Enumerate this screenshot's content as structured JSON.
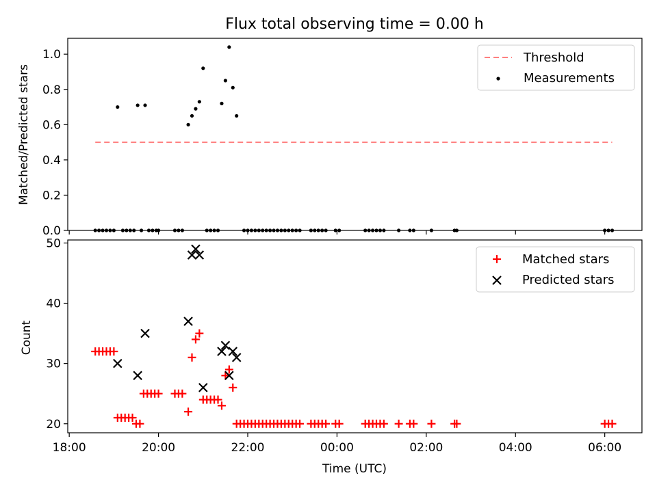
{
  "title": "Flux total observing time = 0.00 h",
  "chart_data": [
    {
      "type": "scatter",
      "ylabel": "Matched/Predicted stars",
      "ylim": [
        0,
        1.09
      ],
      "yticks": [
        "0.0",
        "0.2",
        "0.4",
        "0.6",
        "0.8",
        "1.0"
      ],
      "ytick_values": [
        0,
        0.2,
        0.4,
        0.6,
        0.8,
        1.0
      ],
      "legend_position": "top-right",
      "threshold": {
        "name": "Threshold",
        "value": 0.5,
        "x_range": [
          "18:35",
          "06:10"
        ],
        "color": "#ff7f7f"
      },
      "series": [
        {
          "name": "Measurements",
          "color": "#000000",
          "points": [
            [
              "18:35",
              0
            ],
            [
              "18:40",
              0
            ],
            [
              "18:45",
              0
            ],
            [
              "18:50",
              0
            ],
            [
              "18:55",
              0
            ],
            [
              "19:00",
              0
            ],
            [
              "19:05",
              0.7
            ],
            [
              "19:12",
              0
            ],
            [
              "19:17",
              0
            ],
            [
              "19:22",
              0
            ],
            [
              "19:27",
              0
            ],
            [
              "19:32",
              0.71
            ],
            [
              "19:37",
              0
            ],
            [
              "19:42",
              0.71
            ],
            [
              "19:47",
              0
            ],
            [
              "19:52",
              0
            ],
            [
              "19:57",
              0
            ],
            [
              "20:00",
              0
            ],
            [
              "20:22",
              0
            ],
            [
              "20:27",
              0
            ],
            [
              "20:32",
              0
            ],
            [
              "20:40",
              0.6
            ],
            [
              "20:45",
              0.65
            ],
            [
              "20:50",
              0.69
            ],
            [
              "20:55",
              0.73
            ],
            [
              "21:00",
              0.92
            ],
            [
              "21:05",
              0
            ],
            [
              "21:10",
              0
            ],
            [
              "21:15",
              0
            ],
            [
              "21:20",
              0
            ],
            [
              "21:25",
              0.72
            ],
            [
              "21:30",
              0.85
            ],
            [
              "21:35",
              1.04
            ],
            [
              "21:40",
              0.81
            ],
            [
              "21:45",
              0.65
            ],
            [
              "21:55",
              0
            ],
            [
              "22:00",
              0
            ],
            [
              "22:05",
              0
            ],
            [
              "22:10",
              0
            ],
            [
              "22:15",
              0
            ],
            [
              "22:20",
              0
            ],
            [
              "22:25",
              0
            ],
            [
              "22:30",
              0
            ],
            [
              "22:35",
              0
            ],
            [
              "22:40",
              0
            ],
            [
              "22:45",
              0
            ],
            [
              "22:50",
              0
            ],
            [
              "22:55",
              0
            ],
            [
              "23:00",
              0
            ],
            [
              "23:05",
              0
            ],
            [
              "23:10",
              0
            ],
            [
              "23:25",
              0
            ],
            [
              "23:30",
              0
            ],
            [
              "23:35",
              0
            ],
            [
              "23:40",
              0
            ],
            [
              "23:45",
              0
            ],
            [
              "23:58",
              0
            ],
            [
              "00:03",
              0
            ],
            [
              "00:38",
              0
            ],
            [
              "00:43",
              0
            ],
            [
              "00:48",
              0
            ],
            [
              "00:53",
              0
            ],
            [
              "00:58",
              0
            ],
            [
              "01:03",
              0
            ],
            [
              "01:23",
              0
            ],
            [
              "01:38",
              0
            ],
            [
              "01:43",
              0
            ],
            [
              "02:07",
              0
            ],
            [
              "02:38",
              0
            ],
            [
              "02:41",
              0
            ],
            [
              "06:00",
              0
            ],
            [
              "06:05",
              0
            ],
            [
              "06:10",
              0
            ]
          ]
        }
      ]
    },
    {
      "type": "scatter",
      "xlabel": "Time (UTC)",
      "ylabel": "Count",
      "ylim": [
        18.5,
        50.5
      ],
      "yticks": [
        "20",
        "30",
        "40",
        "50"
      ],
      "ytick_values": [
        20,
        30,
        40,
        50
      ],
      "xlim": [
        "17:58",
        "06:50"
      ],
      "xticks": [
        "18:00",
        "20:00",
        "22:00",
        "00:00",
        "02:00",
        "04:00",
        "06:00"
      ],
      "legend_position": "top-right",
      "series": [
        {
          "name": "Matched stars",
          "marker": "+",
          "color": "#ff0000",
          "points": [
            [
              "18:35",
              32
            ],
            [
              "18:40",
              32
            ],
            [
              "18:45",
              32
            ],
            [
              "18:50",
              32
            ],
            [
              "18:55",
              32
            ],
            [
              "19:00",
              32
            ],
            [
              "19:05",
              21
            ],
            [
              "19:10",
              21
            ],
            [
              "19:15",
              21
            ],
            [
              "19:20",
              21
            ],
            [
              "19:25",
              21
            ],
            [
              "19:30",
              20
            ],
            [
              "19:35",
              20
            ],
            [
              "19:40",
              25
            ],
            [
              "19:45",
              25
            ],
            [
              "19:50",
              25
            ],
            [
              "19:55",
              25
            ],
            [
              "20:00",
              25
            ],
            [
              "20:22",
              25
            ],
            [
              "20:27",
              25
            ],
            [
              "20:32",
              25
            ],
            [
              "20:40",
              22
            ],
            [
              "20:45",
              31
            ],
            [
              "20:50",
              34
            ],
            [
              "20:55",
              35
            ],
            [
              "21:00",
              24
            ],
            [
              "21:05",
              24
            ],
            [
              "21:10",
              24
            ],
            [
              "21:15",
              24
            ],
            [
              "21:20",
              24
            ],
            [
              "21:25",
              23
            ],
            [
              "21:30",
              28
            ],
            [
              "21:35",
              29
            ],
            [
              "21:40",
              26
            ],
            [
              "21:45",
              20
            ],
            [
              "21:50",
              20
            ],
            [
              "21:55",
              20
            ],
            [
              "22:00",
              20
            ],
            [
              "22:05",
              20
            ],
            [
              "22:10",
              20
            ],
            [
              "22:15",
              20
            ],
            [
              "22:20",
              20
            ],
            [
              "22:25",
              20
            ],
            [
              "22:30",
              20
            ],
            [
              "22:35",
              20
            ],
            [
              "22:40",
              20
            ],
            [
              "22:45",
              20
            ],
            [
              "22:50",
              20
            ],
            [
              "22:55",
              20
            ],
            [
              "23:00",
              20
            ],
            [
              "23:05",
              20
            ],
            [
              "23:10",
              20
            ],
            [
              "23:25",
              20
            ],
            [
              "23:30",
              20
            ],
            [
              "23:35",
              20
            ],
            [
              "23:40",
              20
            ],
            [
              "23:45",
              20
            ],
            [
              "23:58",
              20
            ],
            [
              "00:03",
              20
            ],
            [
              "00:38",
              20
            ],
            [
              "00:43",
              20
            ],
            [
              "00:48",
              20
            ],
            [
              "00:53",
              20
            ],
            [
              "00:58",
              20
            ],
            [
              "01:03",
              20
            ],
            [
              "01:23",
              20
            ],
            [
              "01:38",
              20
            ],
            [
              "01:43",
              20
            ],
            [
              "02:07",
              20
            ],
            [
              "02:38",
              20
            ],
            [
              "02:41",
              20
            ],
            [
              "06:00",
              20
            ],
            [
              "06:05",
              20
            ],
            [
              "06:10",
              20
            ]
          ]
        },
        {
          "name": "Predicted stars",
          "marker": "x",
          "color": "#000000",
          "points": [
            [
              "19:05",
              30
            ],
            [
              "19:32",
              28
            ],
            [
              "19:42",
              35
            ],
            [
              "20:40",
              37
            ],
            [
              "20:45",
              48
            ],
            [
              "20:50",
              49
            ],
            [
              "20:55",
              48
            ],
            [
              "21:00",
              26
            ],
            [
              "21:25",
              32
            ],
            [
              "21:30",
              33
            ],
            [
              "21:35",
              28
            ],
            [
              "21:40",
              32
            ],
            [
              "21:45",
              31
            ]
          ]
        }
      ]
    }
  ]
}
